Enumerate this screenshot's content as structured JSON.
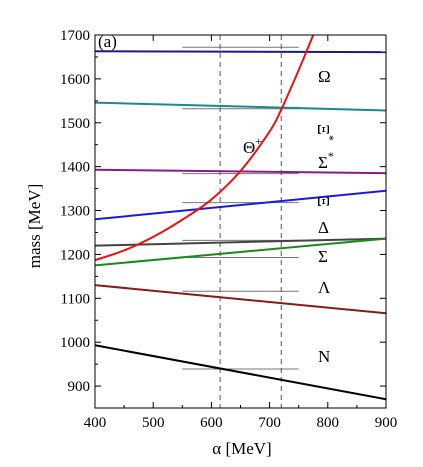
{
  "chart_data": {
    "type": "line",
    "panel_label": "(a)",
    "xlabel": "α [MeV]",
    "ylabel": "mass [MeV]",
    "xlim": [
      400,
      900
    ],
    "ylim": [
      850,
      1700
    ],
    "xticks": [
      400,
      500,
      600,
      700,
      800,
      900
    ],
    "yticks": [
      900,
      1000,
      1100,
      1200,
      1300,
      1400,
      1500,
      1600,
      1700
    ],
    "grid": false,
    "series": [
      {
        "name": "Ω",
        "sup": "",
        "color": "#1a1a8c",
        "x": [
          400,
          900
        ],
        "y": [
          1663,
          1661
        ]
      },
      {
        "name": "Ξ",
        "sup": "*",
        "color": "#1a8a8a",
        "x": [
          400,
          900
        ],
        "y": [
          1546,
          1528
        ]
      },
      {
        "name": "Σ",
        "sup": "*",
        "color": "#8a1a8a",
        "x": [
          400,
          900
        ],
        "y": [
          1393,
          1385
        ]
      },
      {
        "name": "Ξ",
        "sup": "",
        "color": "#1a1adc",
        "x": [
          400,
          900
        ],
        "y": [
          1280,
          1345
        ]
      },
      {
        "name": "Δ",
        "sup": "",
        "color": "#444444",
        "x": [
          400,
          900
        ],
        "y": [
          1220,
          1236
        ]
      },
      {
        "name": "Σ",
        "sup": "",
        "color": "#1a8a1a",
        "x": [
          400,
          900
        ],
        "y": [
          1175,
          1236
        ]
      },
      {
        "name": "Λ",
        "sup": "",
        "color": "#8a1a1a",
        "x": [
          400,
          900
        ],
        "y": [
          1130,
          1066
        ]
      },
      {
        "name": "N",
        "sup": "",
        "color": "#000000",
        "x": [
          400,
          900
        ],
        "y": [
          993,
          870
        ]
      },
      {
        "name": "Θ",
        "sup": "+",
        "color": "#ee1111",
        "x": [
          400,
          450,
          500,
          550,
          600,
          650,
          700,
          720,
          750,
          775
        ],
        "y": [
          1187,
          1209,
          1240,
          1279,
          1325,
          1390,
          1480,
          1530,
          1620,
          1700
        ]
      }
    ],
    "reference_lines": [
      {
        "x_range": [
          550,
          750
        ],
        "y": 1672
      },
      {
        "x_range": [
          550,
          750
        ],
        "y": 1532
      },
      {
        "x_range": [
          550,
          750
        ],
        "y": 1384
      },
      {
        "x_range": [
          550,
          750
        ],
        "y": 1318
      },
      {
        "x_range": [
          550,
          750
        ],
        "y": 1232
      },
      {
        "x_range": [
          550,
          750
        ],
        "y": 1193
      },
      {
        "x_range": [
          550,
          750
        ],
        "y": 1116
      },
      {
        "x_range": [
          550,
          750
        ],
        "y": 939
      }
    ],
    "vertical_dashed_lines": [
      615,
      720
    ]
  }
}
